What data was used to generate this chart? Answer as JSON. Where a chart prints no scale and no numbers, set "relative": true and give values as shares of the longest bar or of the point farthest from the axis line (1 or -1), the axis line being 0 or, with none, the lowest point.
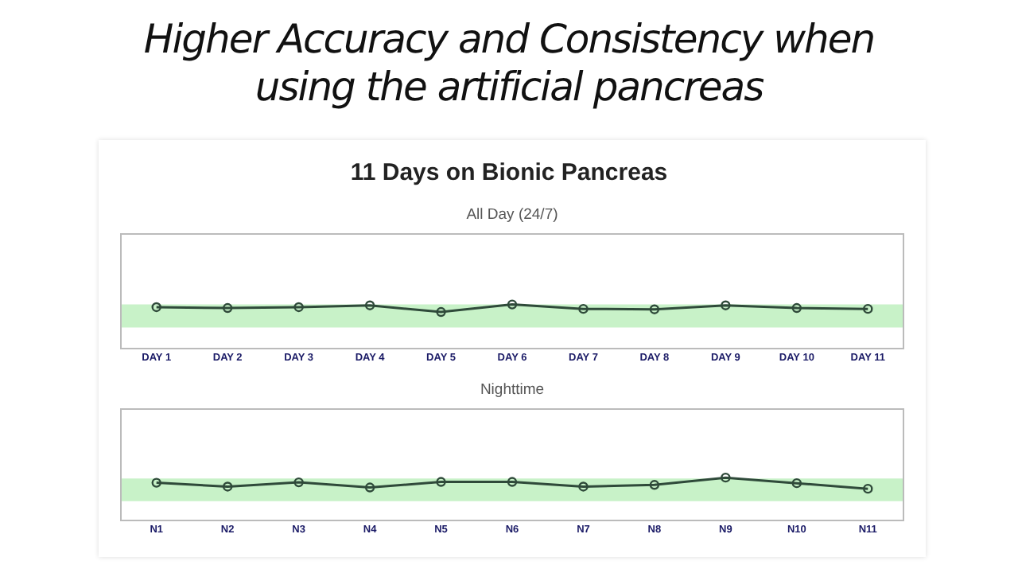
{
  "chart_data": [
    {
      "type": "line",
      "title": "Higher Accuracy and Consistency when using the artificial pancreas",
      "subtitle": "11 Days on Bionic Pancreas",
      "annotations": [
        "All Day (24/7)"
      ],
      "relative": true,
      "marker": "circle",
      "categories": [
        "DAY 1",
        "DAY 2",
        "DAY 3",
        "DAY 4",
        "DAY 5",
        "DAY 6",
        "DAY 7",
        "DAY 8",
        "DAY 9",
        "DAY 10",
        "DAY 11"
      ],
      "series": [
        {
          "color": "#2f4a3a",
          "values": [
            0.94,
            0.92,
            0.94,
            0.98,
            0.83,
            1,
            0.9,
            0.89,
            0.98,
            0.92,
            0.9
          ]
        }
      ],
      "bands": [
        {
          "axis": "y",
          "from": 0.48,
          "to": 1.0,
          "color": "#c8f2c8"
        }
      ]
    },
    {
      "type": "line",
      "title": "Nighttime",
      "relative": true,
      "marker": "circle",
      "categories": [
        "N1",
        "N2",
        "N3",
        "N4",
        "N5",
        "N6",
        "N7",
        "N8",
        "N9",
        "N10",
        "N11"
      ],
      "series": [
        {
          "color": "#2f4a3a",
          "values": [
            0.88,
            0.79,
            0.89,
            0.77,
            0.9,
            0.9,
            0.79,
            0.83,
            1,
            0.87,
            0.74
          ]
        }
      ],
      "bands": [
        {
          "axis": "y",
          "from": 0.45,
          "to": 0.98,
          "color": "#c8f2c8"
        }
      ]
    }
  ]
}
